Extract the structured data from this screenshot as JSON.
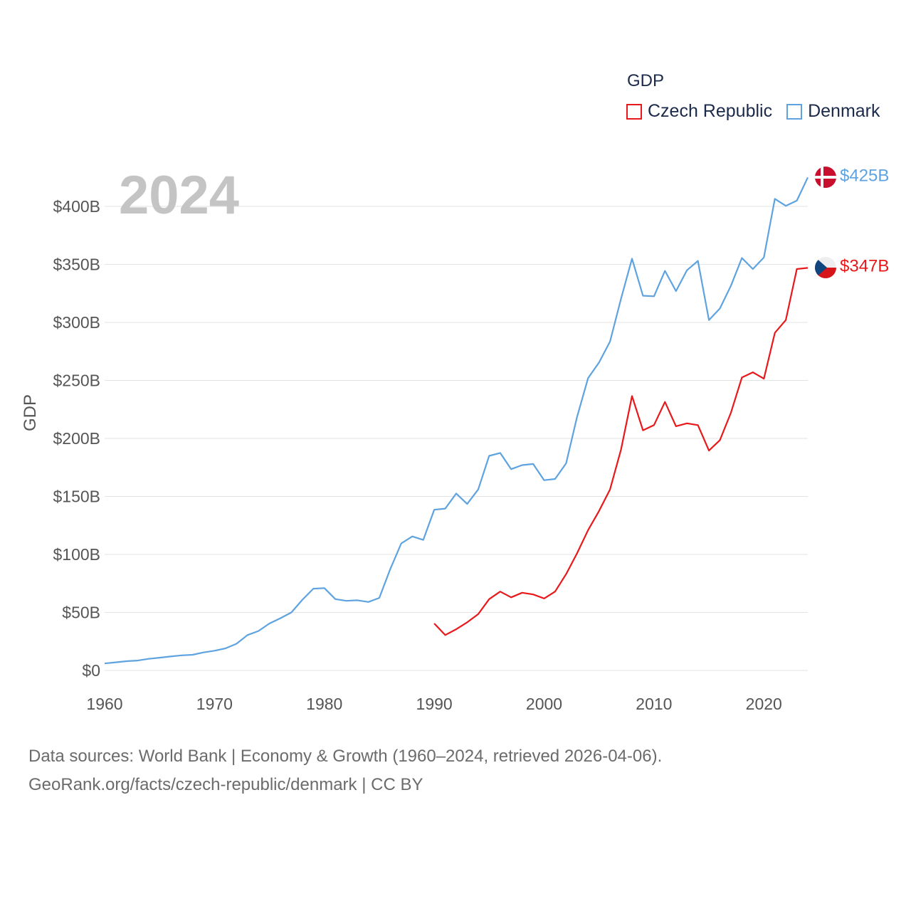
{
  "legend": {
    "title": "GDP",
    "items": [
      {
        "label": "Czech Republic",
        "color": "#e8181b"
      },
      {
        "label": "Denmark",
        "color": "#5ea3e0"
      }
    ]
  },
  "footer": {
    "line1": "Data sources: World Bank | Economy & Growth (1960–2024, retrieved 2026-04-06).",
    "line2": "GeoRank.org/facts/czech-republic/denmark | CC BY"
  },
  "chart_data": {
    "type": "line",
    "title": "GDP",
    "year_label": "2024",
    "xlabel": "",
    "ylabel": "GDP",
    "xlim": [
      1960,
      2024
    ],
    "ylim": [
      0,
      430
    ],
    "x_ticks": [
      "1960",
      "1970",
      "1980",
      "1990",
      "2000",
      "2010",
      "2020"
    ],
    "y_ticks": [
      "$0",
      "$50B",
      "$100B",
      "$150B",
      "$200B",
      "$250B",
      "$300B",
      "$350B",
      "$400B"
    ],
    "y_tick_values": [
      0,
      50,
      100,
      150,
      200,
      250,
      300,
      350,
      400
    ],
    "grid": true,
    "series": [
      {
        "name": "Denmark",
        "color": "#5ea3e0",
        "end_label": "$425B",
        "x": [
          1960,
          1961,
          1962,
          1963,
          1964,
          1965,
          1966,
          1967,
          1968,
          1969,
          1970,
          1971,
          1972,
          1973,
          1974,
          1975,
          1976,
          1977,
          1978,
          1979,
          1980,
          1981,
          1982,
          1983,
          1984,
          1985,
          1986,
          1987,
          1988,
          1989,
          1990,
          1991,
          1992,
          1993,
          1994,
          1995,
          1996,
          1997,
          1998,
          1999,
          2000,
          2001,
          2002,
          2003,
          2004,
          2005,
          2006,
          2007,
          2008,
          2009,
          2010,
          2011,
          2012,
          2013,
          2014,
          2015,
          2016,
          2017,
          2018,
          2019,
          2020,
          2021,
          2022,
          2023,
          2024
        ],
        "values": [
          6,
          7,
          8,
          8.5,
          10,
          11,
          12,
          13,
          13.5,
          15.5,
          17,
          19,
          23,
          30.5,
          34,
          40.5,
          45,
          50,
          61,
          70.5,
          71,
          61.5,
          60,
          60.5,
          59,
          62.5,
          87.5,
          109.5,
          115.5,
          112.5,
          138.5,
          139.5,
          152.5,
          143.5,
          156,
          185,
          187.5,
          173.5,
          177,
          178,
          164,
          165,
          178.5,
          218.5,
          252,
          265.5,
          283.5,
          320.5,
          355,
          323,
          322.5,
          344.5,
          327,
          345,
          353,
          302,
          312,
          331.5,
          355.5,
          346,
          356,
          406.5,
          400.5,
          405,
          425
        ]
      },
      {
        "name": "Czech Republic",
        "color": "#e8181b",
        "end_label": "$347B",
        "x": [
          1990,
          1991,
          1992,
          1993,
          1994,
          1995,
          1996,
          1997,
          1998,
          1999,
          2000,
          2001,
          2002,
          2003,
          2004,
          2005,
          2006,
          2007,
          2008,
          2009,
          2010,
          2011,
          2012,
          2013,
          2014,
          2015,
          2016,
          2017,
          2018,
          2019,
          2020,
          2021,
          2022,
          2023,
          2024
        ],
        "values": [
          40.5,
          30.5,
          35.5,
          41.5,
          48.5,
          61.5,
          68,
          63,
          67,
          65.5,
          62,
          68,
          83,
          101,
          121,
          137.5,
          156,
          190.5,
          236.5,
          207,
          211.5,
          231.5,
          210.5,
          213,
          211.5,
          189.5,
          198.5,
          222,
          252.5,
          257,
          251.5,
          291,
          302,
          346,
          347
        ]
      }
    ]
  }
}
